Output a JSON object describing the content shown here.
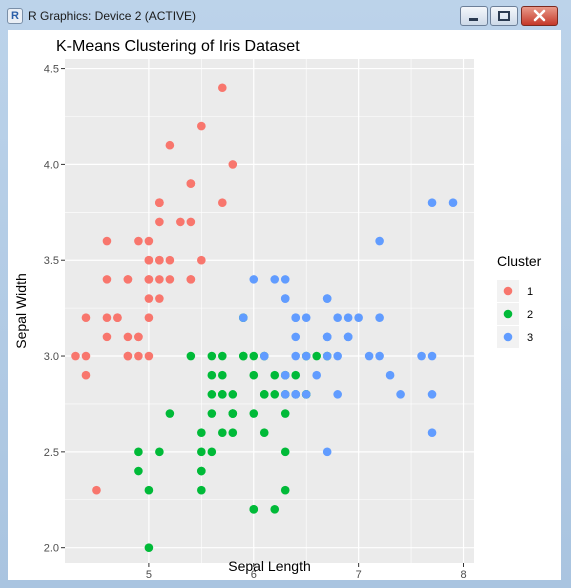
{
  "window": {
    "title": "R Graphics: Device 2 (ACTIVE)",
    "app_icon_letter": "R",
    "minimize_icon": "minimize-icon",
    "maximize_icon": "maximize-icon",
    "close_icon": "close-icon"
  },
  "colors": {
    "cluster_1": "#F8766D",
    "cluster_2": "#00BA38",
    "cluster_3": "#619CFF",
    "panel_background": "#EBEBEB",
    "grid": "#FFFFFF"
  },
  "chart_data": {
    "type": "scatter",
    "title": "K-Means Clustering of Iris Dataset",
    "xlabel": "Sepal Length",
    "ylabel": "Sepal Width",
    "xlim": [
      4.2,
      8.1
    ],
    "ylim": [
      1.92,
      4.55
    ],
    "xticks": [
      5,
      6,
      7,
      8
    ],
    "yticks": [
      2.0,
      2.5,
      3.0,
      3.5,
      4.0,
      4.5
    ],
    "ytick_labels": [
      "2.0",
      "2.5",
      "3.0",
      "3.5",
      "4.0",
      "4.5"
    ],
    "grid": true,
    "legend": {
      "title": "Cluster",
      "position": "right"
    },
    "series": [
      {
        "name": "1",
        "points": [
          [
            5.1,
            3.5
          ],
          [
            4.9,
            3.0
          ],
          [
            4.7,
            3.2
          ],
          [
            4.6,
            3.1
          ],
          [
            5.0,
            3.6
          ],
          [
            5.4,
            3.9
          ],
          [
            4.6,
            3.4
          ],
          [
            5.0,
            3.4
          ],
          [
            4.4,
            2.9
          ],
          [
            4.9,
            3.1
          ],
          [
            5.4,
            3.7
          ],
          [
            4.8,
            3.4
          ],
          [
            4.8,
            3.0
          ],
          [
            4.3,
            3.0
          ],
          [
            5.8,
            4.0
          ],
          [
            5.7,
            4.4
          ],
          [
            5.4,
            3.9
          ],
          [
            5.1,
            3.5
          ],
          [
            5.7,
            3.8
          ],
          [
            5.1,
            3.8
          ],
          [
            5.4,
            3.4
          ],
          [
            5.1,
            3.7
          ],
          [
            4.6,
            3.6
          ],
          [
            5.1,
            3.3
          ],
          [
            4.8,
            3.4
          ],
          [
            5.0,
            3.0
          ],
          [
            5.0,
            3.4
          ],
          [
            5.2,
            3.5
          ],
          [
            5.2,
            3.4
          ],
          [
            4.7,
            3.2
          ],
          [
            4.8,
            3.1
          ],
          [
            5.4,
            3.4
          ],
          [
            5.2,
            4.1
          ],
          [
            5.5,
            4.2
          ],
          [
            4.9,
            3.1
          ],
          [
            5.0,
            3.2
          ],
          [
            5.5,
            3.5
          ],
          [
            4.9,
            3.6
          ],
          [
            4.4,
            3.0
          ],
          [
            5.1,
            3.4
          ],
          [
            5.0,
            3.5
          ],
          [
            4.5,
            2.3
          ],
          [
            4.4,
            3.2
          ],
          [
            5.0,
            3.5
          ],
          [
            5.1,
            3.8
          ],
          [
            4.8,
            3.0
          ],
          [
            5.1,
            3.8
          ],
          [
            4.6,
            3.2
          ],
          [
            5.3,
            3.7
          ],
          [
            5.0,
            3.3
          ]
        ]
      },
      {
        "name": "2",
        "points": [
          [
            5.5,
            2.3
          ],
          [
            5.7,
            2.8
          ],
          [
            4.9,
            2.4
          ],
          [
            5.2,
            2.7
          ],
          [
            5.0,
            2.0
          ],
          [
            5.9,
            3.0
          ],
          [
            6.0,
            2.2
          ],
          [
            5.6,
            2.9
          ],
          [
            5.8,
            2.7
          ],
          [
            6.2,
            2.2
          ],
          [
            5.6,
            2.5
          ],
          [
            5.9,
            3.2
          ],
          [
            6.1,
            2.8
          ],
          [
            6.3,
            2.5
          ],
          [
            6.4,
            2.9
          ],
          [
            6.6,
            3.0
          ],
          [
            6.0,
            2.9
          ],
          [
            5.7,
            2.6
          ],
          [
            5.5,
            2.4
          ],
          [
            5.5,
            2.4
          ],
          [
            5.8,
            2.7
          ],
          [
            6.0,
            2.7
          ],
          [
            5.4,
            3.0
          ],
          [
            6.0,
            3.0
          ],
          [
            6.3,
            2.3
          ],
          [
            5.6,
            3.0
          ],
          [
            5.5,
            2.5
          ],
          [
            5.5,
            2.6
          ],
          [
            6.1,
            3.0
          ],
          [
            5.8,
            2.6
          ],
          [
            5.0,
            2.3
          ],
          [
            5.6,
            2.7
          ],
          [
            5.7,
            3.0
          ],
          [
            5.7,
            2.9
          ],
          [
            6.2,
            2.9
          ],
          [
            5.1,
            2.5
          ],
          [
            5.7,
            2.8
          ],
          [
            5.8,
            2.7
          ],
          [
            4.9,
            2.5
          ],
          [
            6.1,
            2.6
          ],
          [
            6.3,
            2.7
          ],
          [
            6.3,
            2.8
          ],
          [
            6.5,
            2.8
          ],
          [
            6.0,
            2.2
          ],
          [
            6.2,
            2.8
          ],
          [
            6.4,
            2.8
          ],
          [
            6.1,
            2.8
          ],
          [
            6.3,
            2.9
          ],
          [
            5.6,
            2.8
          ],
          [
            6.7,
            3.0
          ],
          [
            6.5,
            3.0
          ],
          [
            5.9,
            3.0
          ],
          [
            5.8,
            2.8
          ],
          [
            6.5,
            2.8
          ]
        ]
      },
      {
        "name": "3",
        "points": [
          [
            7.0,
            3.2
          ],
          [
            6.4,
            3.2
          ],
          [
            6.9,
            3.1
          ],
          [
            6.5,
            2.8
          ],
          [
            6.3,
            3.3
          ],
          [
            6.6,
            2.9
          ],
          [
            6.7,
            3.1
          ],
          [
            6.8,
            2.8
          ],
          [
            6.7,
            3.0
          ],
          [
            6.0,
            3.4
          ],
          [
            6.7,
            3.1
          ],
          [
            6.3,
            3.3
          ],
          [
            7.1,
            3.0
          ],
          [
            7.6,
            3.0
          ],
          [
            7.3,
            2.9
          ],
          [
            6.7,
            2.5
          ],
          [
            7.2,
            3.6
          ],
          [
            6.4,
            3.2
          ],
          [
            6.8,
            3.0
          ],
          [
            6.4,
            2.8
          ],
          [
            6.5,
            3.0
          ],
          [
            7.7,
            3.8
          ],
          [
            7.7,
            2.6
          ],
          [
            6.9,
            3.2
          ],
          [
            7.7,
            2.8
          ],
          [
            6.7,
            3.3
          ],
          [
            7.2,
            3.2
          ],
          [
            6.4,
            2.8
          ],
          [
            7.2,
            3.0
          ],
          [
            7.4,
            2.8
          ],
          [
            7.9,
            3.8
          ],
          [
            6.3,
            2.8
          ],
          [
            7.7,
            3.0
          ],
          [
            6.3,
            3.4
          ],
          [
            6.4,
            3.1
          ],
          [
            6.9,
            3.1
          ],
          [
            6.7,
            3.1
          ],
          [
            6.9,
            3.1
          ],
          [
            6.8,
            3.2
          ],
          [
            6.7,
            3.3
          ],
          [
            6.2,
            3.4
          ],
          [
            5.9,
            3.2
          ],
          [
            6.5,
            3.2
          ],
          [
            6.4,
            3.0
          ],
          [
            6.1,
            3.0
          ],
          [
            6.3,
            2.9
          ]
        ]
      }
    ]
  }
}
